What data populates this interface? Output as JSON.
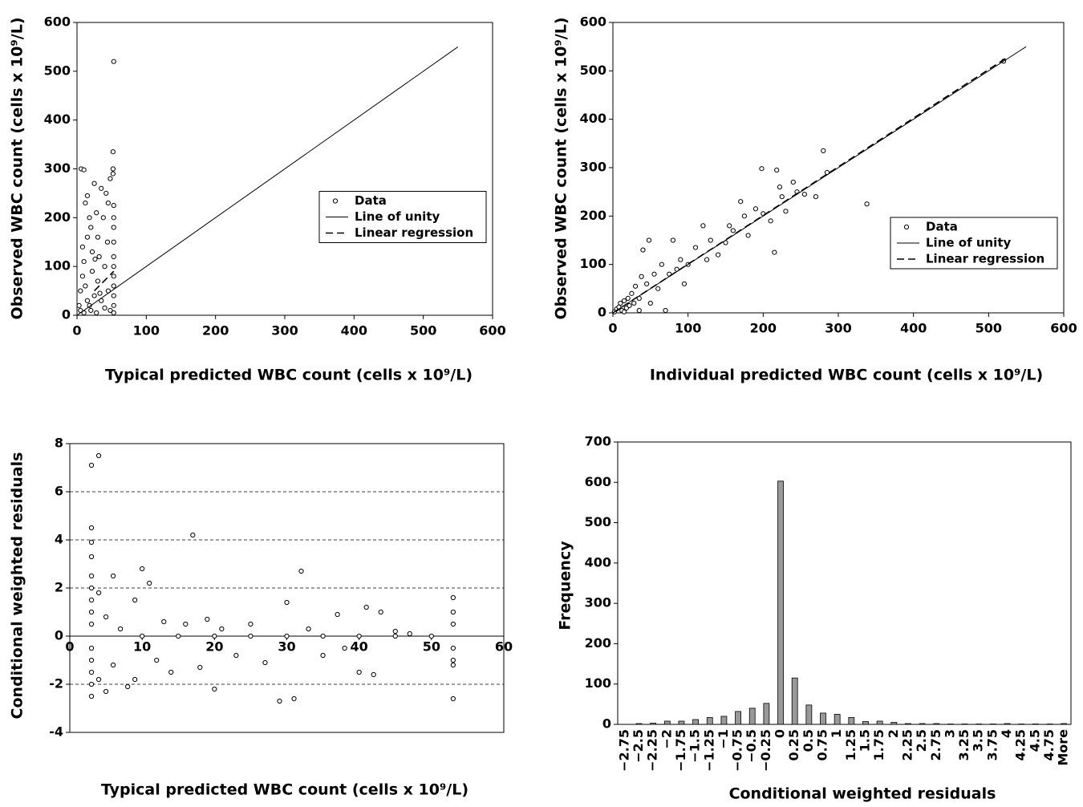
{
  "chart_data": [
    {
      "type": "scatter",
      "x_label": "Typical predicted WBC count (cells x 10⁹/L)",
      "y_label": "Observed WBC count (cells x 10⁹/L)",
      "xlim": [
        0,
        600
      ],
      "ylim": [
        0,
        600
      ],
      "xticks": [
        0,
        100,
        200,
        300,
        400,
        500,
        600
      ],
      "yticks": [
        0,
        100,
        200,
        300,
        400,
        500,
        600
      ],
      "legend": "center right",
      "series": [
        {
          "name": "Data",
          "marker": "circle",
          "color": "#000000",
          "x": [
            5,
            6,
            10,
            12,
            15,
            8,
            10,
            18,
            20,
            22,
            25,
            28,
            30,
            32,
            35,
            38,
            40,
            42,
            45,
            48,
            52,
            52,
            52,
            53,
            53,
            53,
            53,
            53,
            53,
            53,
            53,
            53,
            53,
            53,
            53,
            5,
            8,
            12,
            15,
            18,
            20,
            25,
            28,
            30,
            35,
            40,
            45,
            48,
            10,
            3,
            22,
            33,
            44,
            15,
            26
          ],
          "values": [
            10,
            300,
            298,
            230,
            245,
            140,
            110,
            200,
            180,
            130,
            270,
            210,
            160,
            120,
            260,
            200,
            100,
            250,
            230,
            280,
            335,
            300,
            290,
            225,
            200,
            180,
            150,
            120,
            100,
            80,
            60,
            40,
            20,
            5,
            520,
            50,
            80,
            60,
            30,
            20,
            10,
            40,
            5,
            70,
            30,
            15,
            50,
            10,
            5,
            20,
            90,
            45,
            150,
            160,
            115
          ]
        },
        {
          "name": "Line of unity",
          "line": "solid",
          "color": "#000000",
          "x": [
            0,
            550
          ],
          "values": [
            0,
            550
          ]
        },
        {
          "name": "Linear regression",
          "line": "dashed",
          "color": "#000000",
          "x": [
            25,
            53
          ],
          "values": [
            50,
            90
          ]
        }
      ]
    },
    {
      "type": "scatter",
      "x_label": "Individual predicted WBC count (cells x 10⁹/L)",
      "y_label": "Observed WBC count (cells x 10⁹/L)",
      "xlim": [
        0,
        600
      ],
      "ylim": [
        0,
        600
      ],
      "xticks": [
        0,
        100,
        200,
        300,
        400,
        500,
        600
      ],
      "yticks": [
        0,
        100,
        200,
        300,
        400,
        500,
        600
      ],
      "legend": "lower right",
      "series": [
        {
          "name": "Data",
          "marker": "circle",
          "color": "#000000",
          "x": [
            2,
            5,
            8,
            10,
            12,
            15,
            18,
            20,
            22,
            25,
            28,
            30,
            35,
            38,
            40,
            45,
            48,
            50,
            55,
            60,
            65,
            70,
            75,
            80,
            85,
            90,
            95,
            100,
            110,
            120,
            125,
            130,
            140,
            150,
            155,
            160,
            170,
            175,
            180,
            190,
            198,
            200,
            210,
            215,
            218,
            222,
            225,
            230,
            240,
            245,
            255,
            270,
            280,
            285,
            338,
            520,
            15,
            35
          ],
          "values": [
            2,
            8,
            12,
            20,
            5,
            25,
            10,
            30,
            15,
            40,
            20,
            55,
            30,
            75,
            130,
            60,
            150,
            20,
            80,
            50,
            100,
            5,
            80,
            150,
            90,
            110,
            60,
            100,
            135,
            180,
            110,
            150,
            120,
            145,
            180,
            170,
            230,
            200,
            160,
            215,
            298,
            205,
            190,
            125,
            295,
            260,
            240,
            210,
            270,
            250,
            245,
            240,
            335,
            290,
            225,
            520,
            2,
            5
          ]
        },
        {
          "name": "Line of unity",
          "line": "solid",
          "color": "#000000",
          "x": [
            0,
            550
          ],
          "values": [
            0,
            550
          ]
        },
        {
          "name": "Linear regression",
          "line": "dashed",
          "color": "#000000",
          "x": [
            0,
            525
          ],
          "values": [
            0,
            528
          ]
        }
      ]
    },
    {
      "type": "scatter",
      "x_label": "Typical predicted WBC count (cells x 10⁹/L)",
      "y_label": "Conditional weighted residuals",
      "xlim": [
        0,
        60
      ],
      "ylim": [
        -4,
        8
      ],
      "xticks": [
        0,
        10,
        20,
        30,
        40,
        50,
        60
      ],
      "yticks": [
        -4,
        -2,
        0,
        2,
        4,
        6,
        8
      ],
      "grid": "dashed",
      "x_axis_at_zero": true,
      "series": [
        {
          "marker": "circle",
          "color": "#000000",
          "x": [
            3,
            4,
            3,
            3,
            3,
            3,
            3,
            3,
            3,
            3,
            3,
            3,
            3,
            3,
            3,
            4,
            4,
            5,
            5,
            6,
            6,
            7,
            8,
            9,
            9,
            10,
            11,
            12,
            13,
            14,
            16,
            17,
            18,
            19,
            20,
            21,
            23,
            25,
            27,
            29,
            30,
            31,
            32,
            33,
            35,
            37,
            38,
            40,
            41,
            42,
            43,
            45,
            47,
            50,
            53,
            53,
            53,
            53,
            53,
            53,
            53,
            10,
            15,
            20,
            25,
            30,
            35,
            40,
            45
          ],
          "values": [
            7.1,
            7.5,
            4.5,
            3.9,
            3.3,
            2.5,
            2,
            1.5,
            1,
            0.5,
            -0.5,
            -1,
            -1.5,
            -2,
            -2.5,
            1.8,
            -1.8,
            0.8,
            -2.3,
            2.5,
            -1.2,
            0.3,
            -2.1,
            1.5,
            -1.8,
            2.8,
            2.2,
            -1,
            0.6,
            -1.5,
            0.5,
            4.2,
            -1.3,
            0.7,
            -2.2,
            0.3,
            -0.8,
            0.5,
            -1.1,
            -2.7,
            1.4,
            -2.6,
            2.7,
            0.3,
            -0.8,
            0.9,
            -0.5,
            -1.5,
            1.2,
            -1.6,
            1,
            0.2,
            0.1,
            0,
            1.6,
            1,
            0.5,
            -0.5,
            -1,
            -1.2,
            -2.6,
            0,
            0,
            0,
            0,
            0,
            0,
            0,
            0
          ]
        }
      ]
    },
    {
      "type": "bar",
      "x_label": "Conditional weighted residuals",
      "y_label": "Frequency",
      "ylim": [
        0,
        700
      ],
      "yticks": [
        0,
        100,
        200,
        300,
        400,
        500,
        600,
        700
      ],
      "color": "#999999",
      "categories": [
        "−2.75",
        "−2.5",
        "−2.25",
        "−2",
        "−1.75",
        "−1.5",
        "−1.25",
        "−1",
        "−0.75",
        "−0.5",
        "−0.25",
        "0",
        "0.25",
        "0.5",
        "0.75",
        "1",
        "1.25",
        "1.5",
        "1.75",
        "2",
        "2.25",
        "2.5",
        "2.75",
        "3",
        "3.25",
        "3.5",
        "3.75",
        "4",
        "4.25",
        "4.5",
        "4.75",
        "More"
      ],
      "values": [
        0,
        2,
        3,
        8,
        8,
        12,
        17,
        20,
        32,
        40,
        52,
        603,
        115,
        48,
        28,
        25,
        17,
        7,
        8,
        5,
        2,
        2,
        2,
        1,
        1,
        1,
        1,
        2,
        1,
        1,
        1,
        2
      ]
    }
  ]
}
